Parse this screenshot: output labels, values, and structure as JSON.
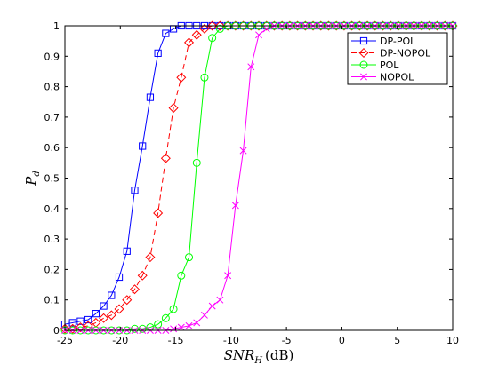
{
  "chart_data": {
    "type": "line",
    "xlabel_main": "SNR",
    "xlabel_sub": "H",
    "xlabel_unit": "(dB)",
    "ylabel_main": "P",
    "ylabel_sub": "d",
    "xlim": [
      -25,
      10
    ],
    "ylim": [
      0,
      1
    ],
    "xticks": [
      -25,
      -20,
      -15,
      -10,
      -5,
      0,
      5,
      10
    ],
    "xtick_labels": [
      "-25",
      "-20",
      "-15",
      "-10",
      "-5",
      "0",
      "5",
      "10"
    ],
    "yticks": [
      0,
      0.1,
      0.2,
      0.3,
      0.4,
      0.5,
      0.6,
      0.7,
      0.8,
      0.9,
      1
    ],
    "ytick_labels": [
      "0",
      "0.1",
      "0.2",
      "0.3",
      "0.4",
      "0.5",
      "0.6",
      "0.7",
      "0.8",
      "0.9",
      "1"
    ],
    "grid": false,
    "legend_position": "top-right",
    "x": [
      -25,
      -24.3,
      -23.6,
      -22.9,
      -22.2,
      -21.5,
      -20.8,
      -20.1,
      -19.4,
      -18.7,
      -18,
      -17.3,
      -16.6,
      -15.9,
      -15.2,
      -14.5,
      -13.8,
      -13.1,
      -12.4,
      -11.7,
      -11,
      -10.3,
      -9.6,
      -8.9,
      -8.2,
      -7.5,
      -6.8,
      -6.1,
      -5.4,
      -4.7,
      -4,
      -3.3,
      -2.6,
      -1.9,
      -1.2,
      -0.5,
      0.2,
      0.9,
      1.6,
      2.3,
      3,
      3.7,
      4.4,
      5.1,
      5.8,
      6.5,
      7.2,
      7.9,
      8.6,
      9.3,
      10
    ],
    "series": [
      {
        "name": "DP-POL",
        "color": "#0000ff",
        "marker": "square",
        "dash": "solid",
        "values": [
          0.02,
          0.025,
          0.03,
          0.035,
          0.055,
          0.08,
          0.115,
          0.175,
          0.26,
          0.46,
          0.605,
          0.765,
          0.91,
          0.975,
          0.99,
          1,
          1,
          1,
          1,
          1,
          1,
          1,
          1,
          1,
          1,
          1,
          1,
          1,
          1,
          1,
          1,
          1,
          1,
          1,
          1,
          1,
          1,
          1,
          1,
          1,
          1,
          1,
          1,
          1,
          1,
          1,
          1,
          1,
          1,
          1,
          1
        ]
      },
      {
        "name": "DP-NOPOL",
        "color": "#ff0000",
        "marker": "diamond",
        "dash": "dashed",
        "values": [
          0.005,
          0.005,
          0.01,
          0.015,
          0.025,
          0.04,
          0.05,
          0.07,
          0.1,
          0.135,
          0.18,
          0.24,
          0.385,
          0.565,
          0.73,
          0.83,
          0.945,
          0.97,
          0.99,
          1,
          1,
          1,
          1,
          1,
          1,
          1,
          1,
          1,
          1,
          1,
          1,
          1,
          1,
          1,
          1,
          1,
          1,
          1,
          1,
          1,
          1,
          1,
          1,
          1,
          1,
          1,
          1,
          1,
          1,
          1,
          1
        ]
      },
      {
        "name": "POL",
        "color": "#00ff00",
        "marker": "circle",
        "dash": "solid",
        "values": [
          0,
          0,
          0,
          0,
          0,
          0,
          0,
          0,
          0,
          0.005,
          0.005,
          0.01,
          0.02,
          0.04,
          0.07,
          0.18,
          0.24,
          0.55,
          0.83,
          0.96,
          0.99,
          1,
          1,
          1,
          1,
          1,
          1,
          1,
          1,
          1,
          1,
          1,
          1,
          1,
          1,
          1,
          1,
          1,
          1,
          1,
          1,
          1,
          1,
          1,
          1,
          1,
          1,
          1,
          1,
          1,
          1
        ]
      },
      {
        "name": "NOPOL",
        "color": "#ff00ff",
        "marker": "x",
        "dash": "solid",
        "values": [
          0,
          0,
          0,
          0,
          0,
          0,
          0,
          0,
          0,
          0,
          0,
          0,
          0,
          0,
          0.005,
          0.01,
          0.015,
          0.025,
          0.05,
          0.08,
          0.1,
          0.18,
          0.41,
          0.59,
          0.865,
          0.97,
          0.99,
          1,
          1,
          1,
          1,
          1,
          1,
          1,
          1,
          1,
          1,
          1,
          1,
          1,
          1,
          1,
          1,
          1,
          1,
          1,
          1,
          1,
          1,
          1,
          1
        ]
      }
    ]
  }
}
